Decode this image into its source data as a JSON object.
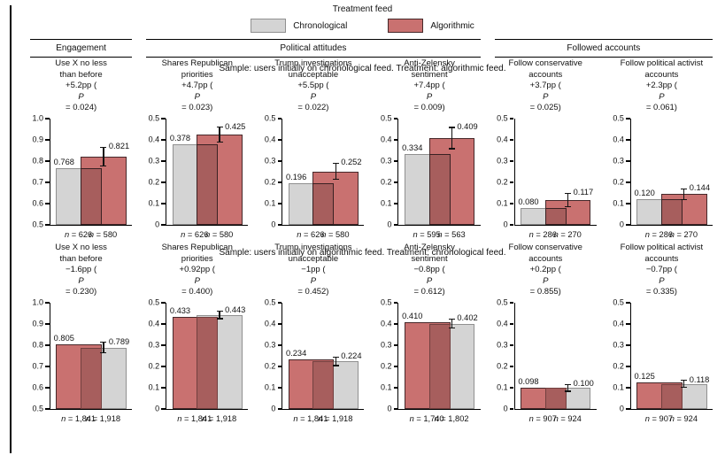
{
  "figure": {
    "legend": {
      "title": "Treatment feed",
      "items": [
        {
          "label": "Chronological",
          "series": "chronological"
        },
        {
          "label": "Algorithmic",
          "series": "algorithmic"
        }
      ]
    },
    "group_headers": [
      {
        "label": "Engagement",
        "span": 1
      },
      {
        "label": "Political attitudes",
        "span": 3
      },
      {
        "label": "Followed accounts",
        "span": 2
      }
    ],
    "colors": {
      "chronological_fill": "#d4d4d4",
      "chronological_border": "#909090",
      "algorithmic_fill": "#c97170",
      "algorithmic_border": "#46282a",
      "error_bar": "#121212",
      "text": "#111111"
    }
  },
  "chart_data": [
    {
      "type": "bar",
      "sample_note": "Sample: users initially on chronological feed. Treatment: algorithmic feed.",
      "legend_position": "top",
      "grid": false,
      "panels": [
        {
          "title_lines": [
            "Use X no less",
            "than before"
          ],
          "effect": "+5.2pp (P = 0.024)",
          "ylim": [
            0.5,
            1.0
          ],
          "yticks": [
            "0.5",
            "0.6",
            "0.7",
            "0.8",
            "0.9",
            "1.0"
          ],
          "bars": [
            {
              "series": "Chronological",
              "value": 0.768,
              "label": "0.768",
              "n": "n = 626"
            },
            {
              "series": "Algorithmic",
              "value": 0.821,
              "label": "0.821",
              "n": "n = 580",
              "err": 0.045
            }
          ]
        },
        {
          "title_lines": [
            "Shares Republican",
            "priorities"
          ],
          "effect": "+4.7pp (P = 0.023)",
          "ylim": [
            0,
            0.5
          ],
          "yticks": [
            "0",
            "0.1",
            "0.2",
            "0.3",
            "0.4",
            "0.5"
          ],
          "bars": [
            {
              "series": "Chronological",
              "value": 0.378,
              "label": "0.378",
              "n": "n = 626"
            },
            {
              "series": "Algorithmic",
              "value": 0.425,
              "label": "0.425",
              "n": "n = 580",
              "err": 0.035
            }
          ]
        },
        {
          "title_lines": [
            "Trump investigations",
            "unacceptable"
          ],
          "effect": "+5.5pp (P = 0.022)",
          "ylim": [
            0,
            0.5
          ],
          "yticks": [
            "0",
            "0.1",
            "0.2",
            "0.3",
            "0.4",
            "0.5"
          ],
          "bars": [
            {
              "series": "Chronological",
              "value": 0.196,
              "label": "0.196",
              "n": "n = 626"
            },
            {
              "series": "Algorithmic",
              "value": 0.252,
              "label": "0.252",
              "n": "n = 580",
              "err": 0.038
            }
          ]
        },
        {
          "title_lines": [
            "Anti-Zelensky",
            "sentiment"
          ],
          "effect": "+7.4pp (P = 0.009)",
          "ylim": [
            0,
            0.5
          ],
          "yticks": [
            "0",
            "0.1",
            "0.2",
            "0.3",
            "0.4",
            "0.5"
          ],
          "bars": [
            {
              "series": "Chronological",
              "value": 0.334,
              "label": "0.334",
              "n": "n = 595"
            },
            {
              "series": "Algorithmic",
              "value": 0.409,
              "label": "0.409",
              "n": "n = 563",
              "err": 0.05
            }
          ]
        },
        {
          "title_lines": [
            "Follow conservative",
            "accounts"
          ],
          "effect": "+3.7pp (P = 0.025)",
          "ylim": [
            0,
            0.5
          ],
          "yticks": [
            "0",
            "0.1",
            "0.2",
            "0.3",
            "0.4",
            "0.5"
          ],
          "bars": [
            {
              "series": "Chronological",
              "value": 0.08,
              "label": "0.080",
              "n": "n = 286"
            },
            {
              "series": "Algorithmic",
              "value": 0.117,
              "label": "0.117",
              "n": "n = 270",
              "err": 0.032
            }
          ]
        },
        {
          "title_lines": [
            "Follow political activist",
            "accounts"
          ],
          "effect": "+2.3pp (P = 0.061)",
          "ylim": [
            0,
            0.5
          ],
          "yticks": [
            "0",
            "0.1",
            "0.2",
            "0.3",
            "0.4",
            "0.5"
          ],
          "bars": [
            {
              "series": "Chronological",
              "value": 0.12,
              "label": "0.120",
              "n": "n = 286"
            },
            {
              "series": "Algorithmic",
              "value": 0.144,
              "label": "0.144",
              "n": "n = 270",
              "err": 0.026
            }
          ]
        }
      ]
    },
    {
      "type": "bar",
      "sample_note": "Sample: users initially on algorithmic feed. Treatment: chronological feed.",
      "grid": false,
      "panels": [
        {
          "title_lines": [
            "Use X no less",
            "than before"
          ],
          "effect": "−1.6pp (P = 0.230)",
          "ylim": [
            0.5,
            1.0
          ],
          "yticks": [
            "0.5",
            "0.6",
            "0.7",
            "0.8",
            "0.9",
            "1.0"
          ],
          "bars": [
            {
              "series": "Algorithmic",
              "value": 0.805,
              "label": "0.805",
              "n": "n = 1,841"
            },
            {
              "series": "Chronological",
              "value": 0.789,
              "label": "0.789",
              "n": "n = 1,918",
              "err": 0.025
            }
          ]
        },
        {
          "title_lines": [
            "Shares Republican",
            "priorities"
          ],
          "effect": "+0.92pp (P = 0.400)",
          "ylim": [
            0,
            0.5
          ],
          "yticks": [
            "0",
            "0.1",
            "0.2",
            "0.3",
            "0.4",
            "0.5"
          ],
          "bars": [
            {
              "series": "Algorithmic",
              "value": 0.433,
              "label": "0.433",
              "n": "n = 1,841"
            },
            {
              "series": "Chronological",
              "value": 0.443,
              "label": "0.443",
              "n": "n = 1,918",
              "err": 0.018
            }
          ]
        },
        {
          "title_lines": [
            "Trump investigations",
            "unacceptable"
          ],
          "effect": "−1pp (P = 0.452)",
          "ylim": [
            0,
            0.5
          ],
          "yticks": [
            "0",
            "0.1",
            "0.2",
            "0.3",
            "0.4",
            "0.5"
          ],
          "bars": [
            {
              "series": "Algorithmic",
              "value": 0.234,
              "label": "0.234",
              "n": "n = 1,841"
            },
            {
              "series": "Chronological",
              "value": 0.224,
              "label": "0.224",
              "n": "n = 1,918",
              "err": 0.02
            }
          ]
        },
        {
          "title_lines": [
            "Anti-Zelensky",
            "sentiment"
          ],
          "effect": "−0.8pp (P = 0.612)",
          "ylim": [
            0,
            0.5
          ],
          "yticks": [
            "0",
            "0.1",
            "0.2",
            "0.3",
            "0.4",
            "0.5"
          ],
          "bars": [
            {
              "series": "Algorithmic",
              "value": 0.41,
              "label": "0.410",
              "n": "n = 1,740"
            },
            {
              "series": "Chronological",
              "value": 0.402,
              "label": "0.402",
              "n": "n = 1,802",
              "err": 0.022
            }
          ]
        },
        {
          "title_lines": [
            "Follow conservative",
            "accounts"
          ],
          "effect": "+0.2pp (P = 0.855)",
          "ylim": [
            0,
            0.5
          ],
          "yticks": [
            "0",
            "0.1",
            "0.2",
            "0.3",
            "0.4",
            "0.5"
          ],
          "bars": [
            {
              "series": "Algorithmic",
              "value": 0.098,
              "label": "0.098",
              "n": "n = 907"
            },
            {
              "series": "Chronological",
              "value": 0.1,
              "label": "0.100",
              "n": "n = 924",
              "err": 0.016
            }
          ]
        },
        {
          "title_lines": [
            "Follow political activist",
            "accounts"
          ],
          "effect": "−0.7pp (P = 0.335)",
          "ylim": [
            0,
            0.5
          ],
          "yticks": [
            "0",
            "0.1",
            "0.2",
            "0.3",
            "0.4",
            "0.5"
          ],
          "bars": [
            {
              "series": "Algorithmic",
              "value": 0.125,
              "label": "0.125",
              "n": "n = 907"
            },
            {
              "series": "Chronological",
              "value": 0.118,
              "label": "0.118",
              "n": "n = 924",
              "err": 0.017
            }
          ]
        }
      ]
    }
  ]
}
